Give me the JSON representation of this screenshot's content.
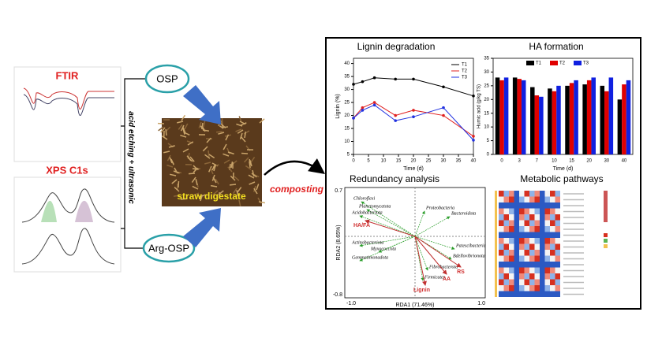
{
  "left": {
    "ftir_title": "FTIR",
    "xps_title": "XPS C1s",
    "osp": "OSP",
    "arg_osp": "Arg-OSP",
    "process": "acid etching + ultrasonic",
    "image_label": "straw digestate",
    "composting": "composting"
  },
  "lignin": {
    "type": "line",
    "title": "Lignin degradation",
    "x_label": "Time (d)",
    "y_label": "Lignin (%)",
    "xlim": [
      0,
      40
    ],
    "xticks": [
      0,
      5,
      10,
      15,
      20,
      25,
      30,
      35,
      40
    ],
    "ylim": [
      5,
      42
    ],
    "yticks": [
      5,
      10,
      15,
      20,
      25,
      30,
      35,
      40
    ],
    "x": [
      0,
      3,
      7,
      14,
      20,
      30,
      40
    ],
    "series": [
      {
        "name": "T1",
        "color": "#000000",
        "values": [
          32,
          33,
          34.5,
          34,
          34,
          31,
          27.5
        ]
      },
      {
        "name": "T2",
        "color": "#e02020",
        "values": [
          19,
          23,
          25,
          20,
          22,
          20,
          12
        ]
      },
      {
        "name": "T3",
        "color": "#2030e0",
        "values": [
          19,
          22,
          24,
          18,
          19.5,
          23,
          10.5
        ]
      }
    ]
  },
  "ha": {
    "type": "bar",
    "title": "HA  formation",
    "x_label": "Time (d)",
    "y_label": "Humic acid (g/kg TS)",
    "categories": [
      "0",
      "3",
      "7",
      "10",
      "15",
      "20",
      "30",
      "40"
    ],
    "ylim": [
      0,
      35
    ],
    "yticks": [
      0,
      5,
      10,
      15,
      20,
      25,
      30,
      35
    ],
    "series": [
      {
        "name": "T1",
        "color": "#000000",
        "values": [
          28,
          28,
          24.5,
          24,
          25,
          25.5,
          25,
          20
        ]
      },
      {
        "name": "T2",
        "color": "#e00000",
        "values": [
          27,
          27.5,
          21.5,
          23,
          26,
          27,
          23,
          25.5
        ]
      },
      {
        "name": "T3",
        "color": "#1020e0",
        "values": [
          28,
          27,
          21,
          25,
          27,
          28,
          28,
          27
        ]
      }
    ]
  },
  "rda": {
    "title": "Redundancy analysis",
    "x_label": "RDA1 (71.46%)",
    "y_label": "RDA2 (8.65%)",
    "x_ticks": [
      "-1.0",
      "1.0"
    ],
    "y_ticks": [
      "0.7",
      "-0.8"
    ],
    "species": [
      "Chloroflexi",
      "Planctomycetota",
      "Acidobacteriota",
      "Actinobacteriota",
      "Myxococcota",
      "Gemmatimonadota",
      "Proteobacteria",
      "Bacteroidota",
      "Patescibacteria",
      "Bdellovibrionota",
      "Fibrobacterota",
      "Firmicutes"
    ],
    "factors": [
      "HA/FA",
      "Lignin",
      "AA",
      "RS"
    ]
  },
  "metabolic": {
    "title": "Metabolic pathways"
  }
}
